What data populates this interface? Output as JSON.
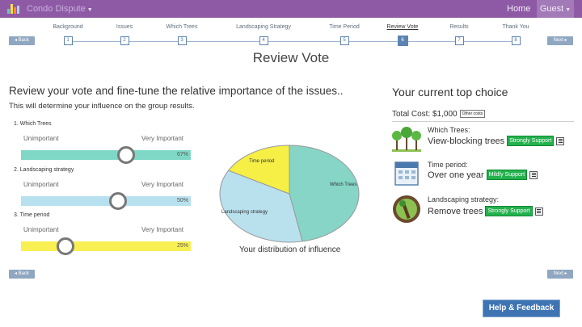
{
  "header": {
    "app_title": "Condo Dispute",
    "home_label": "Home",
    "user_label": "Guest",
    "logo_colors": [
      "#5fcfc0",
      "#f0e24c",
      "#f08a3c",
      "#b0d0ea"
    ]
  },
  "wizard": {
    "back_label": "Back",
    "next_label": "Next",
    "active_step": 6,
    "steps": [
      {
        "label": "Background",
        "num": "1"
      },
      {
        "label": "Issues",
        "num": "2"
      },
      {
        "label": "Which Trees",
        "num": "3"
      },
      {
        "label": "Landscaping Strategy",
        "num": "4"
      },
      {
        "label": "Time Period",
        "num": "5"
      },
      {
        "label": "Review Vote",
        "num": "6"
      },
      {
        "label": "Results",
        "num": "7"
      },
      {
        "label": "Thank You",
        "num": "8"
      }
    ]
  },
  "page_title": "Review Vote",
  "review": {
    "lead": "Review your vote and fine-tune the relative importance of the issues..",
    "sublead": "This will determine your influence on the group results.",
    "low_label": "Unimportant",
    "high_label": "Very Important",
    "issues": [
      {
        "title": "1. Which Trees",
        "value": "67%",
        "fraction": 0.62,
        "color": "#7fd8c5"
      },
      {
        "title": "2. Landscaping strategy",
        "value": "50%",
        "fraction": 0.57,
        "color": "#b7e1ee"
      },
      {
        "title": "3. Time period",
        "value": "25%",
        "fraction": 0.26,
        "color": "#f8ef52"
      }
    ]
  },
  "chart_data": {
    "type": "pie",
    "title": "Your distribution of influence",
    "slices": [
      {
        "label": "Which Trees",
        "value": 47,
        "color": "#86d5c6"
      },
      {
        "label": "Landscaping strategy",
        "value": 36,
        "color": "#b9e0ed"
      },
      {
        "label": "Time period",
        "value": 17,
        "color": "#f5ef46"
      }
    ]
  },
  "top_choice": {
    "heading": "Your current top choice",
    "total_label": "Total Cost: $1,000",
    "options_label": "Other costs",
    "choices": [
      {
        "issue": "Which Trees:",
        "value": "View-blocking trees",
        "support": "Strongly Support",
        "icon": "trees-icon"
      },
      {
        "issue": "Time period:",
        "value": "Over one year",
        "support": "Mildly Support",
        "icon": "calendar-icon"
      },
      {
        "issue": "Landscaping strategy:",
        "value": "Remove trees",
        "support": "Strongly Support",
        "icon": "tree-removal-icon"
      }
    ]
  },
  "footer": {
    "back_label": "Back",
    "next_label": "Next",
    "help_label": "Help & Feedback"
  }
}
